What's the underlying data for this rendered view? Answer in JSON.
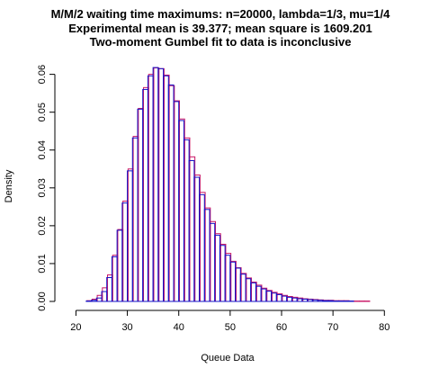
{
  "chart_data": {
    "type": "bar",
    "title_lines": [
      "M/M/2 waiting time maximums: n=20000, lambda=1/3, mu=1/4",
      "Experimental mean is 39.377; mean square is 1609.201",
      "Two-moment Gumbel fit to data is inconclusive"
    ],
    "xlabel": "Queue Data",
    "ylabel": "Density",
    "xlim": [
      18,
      81
    ],
    "ylim": [
      0,
      0.063
    ],
    "xticks": [
      "20",
      "30",
      "40",
      "50",
      "60",
      "70",
      "80"
    ],
    "yticks": [
      "0.00",
      "0.01",
      "0.02",
      "0.03",
      "0.04",
      "0.05",
      "0.06"
    ],
    "bin_width": 1,
    "bin_start": 18,
    "histogram_values": [
      0,
      0,
      0,
      0,
      0.0001,
      0.0003,
      0.0009,
      0.0026,
      0.0063,
      0.0118,
      0.0188,
      0.026,
      0.0345,
      0.0432,
      0.0508,
      0.056,
      0.0596,
      0.0618,
      0.0615,
      0.0596,
      0.0572,
      0.0528,
      0.0478,
      0.0427,
      0.0372,
      0.0328,
      0.0282,
      0.0243,
      0.0206,
      0.0175,
      0.0148,
      0.0122,
      0.0104,
      0.0088,
      0.0072,
      0.006,
      0.0049,
      0.004,
      0.0033,
      0.0027,
      0.0022,
      0.0018,
      0.0014,
      0.0011,
      0.0009,
      0.0007,
      0.0006,
      0.0005,
      0.0004,
      0.0003,
      0.0002,
      0.0002,
      0.0001,
      0.0001,
      0.0001,
      0.0001,
      0,
      0,
      0,
      0,
      0,
      0,
      0
    ],
    "fit_values": [
      0,
      0,
      0,
      0,
      0.0002,
      0.0006,
      0.0016,
      0.0036,
      0.007,
      0.0122,
      0.019,
      0.0265,
      0.035,
      0.0436,
      0.051,
      0.0565,
      0.06,
      0.0617,
      0.0615,
      0.0598,
      0.057,
      0.053,
      0.0482,
      0.0432,
      0.0382,
      0.0334,
      0.0288,
      0.0247,
      0.0211,
      0.0179,
      0.0151,
      0.0127,
      0.0106,
      0.0089,
      0.0074,
      0.0062,
      0.0051,
      0.0043,
      0.0035,
      0.0029,
      0.0024,
      0.002,
      0.0016,
      0.0013,
      0.0011,
      0.0009,
      0.0007,
      0.0006,
      0.0005,
      0.0004,
      0.0003,
      0.0003,
      0.0002,
      0.0002,
      0.0002,
      0.0001,
      0.0001,
      0.0001,
      0.0001,
      0,
      0,
      0,
      0
    ],
    "bar_color": "#1414c8",
    "fit_color": "#c81464",
    "grid": false,
    "legend": "none"
  }
}
